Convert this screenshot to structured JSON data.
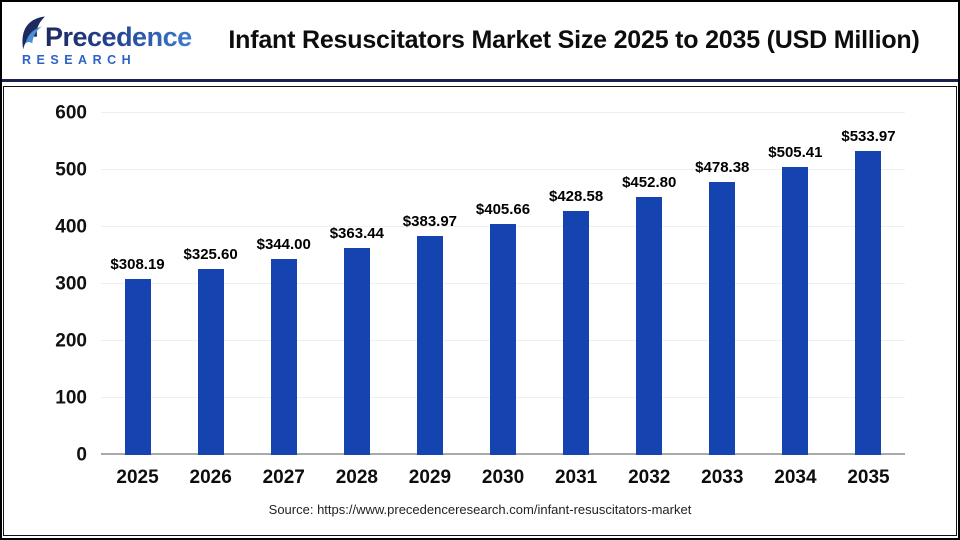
{
  "header": {
    "logo_text": "Precedence",
    "logo_subtext": "RESEARCH",
    "title": "Infant Resuscitators Market Size 2025 to 2035 (USD Million)"
  },
  "chart_data": {
    "type": "bar",
    "title": "Infant Resuscitators Market Size 2025 to 2035 (USD Million)",
    "categories": [
      "2025",
      "2026",
      "2027",
      "2028",
      "2029",
      "2030",
      "2031",
      "2032",
      "2033",
      "2034",
      "2035"
    ],
    "values": [
      308.19,
      325.6,
      344.0,
      363.44,
      383.97,
      405.66,
      428.58,
      452.8,
      478.38,
      505.41,
      533.97
    ],
    "value_labels": [
      "$308.19",
      "$325.60",
      "$344.00",
      "$363.44",
      "$383.97",
      "$405.66",
      "$428.58",
      "$452.80",
      "$478.38",
      "$505.41",
      "$533.97"
    ],
    "xlabel": "",
    "ylabel": "",
    "ylim": [
      0,
      600
    ],
    "yticks": [
      0,
      100,
      200,
      300,
      400,
      500,
      600
    ],
    "grid": true,
    "legend_position": "none",
    "bar_color": "#1544b0"
  },
  "footer": {
    "source": "Source: https://www.precedenceresearch.com/infant-resuscitators-market"
  },
  "colors": {
    "bar": "#1544b0",
    "separator": "#1b2150",
    "gridline": "#efefef",
    "axis_line": "#a9a9a9",
    "logo_navy": "#1d2a5e",
    "logo_blue": "#3d7cd0",
    "research_blue": "#2e62c9"
  }
}
